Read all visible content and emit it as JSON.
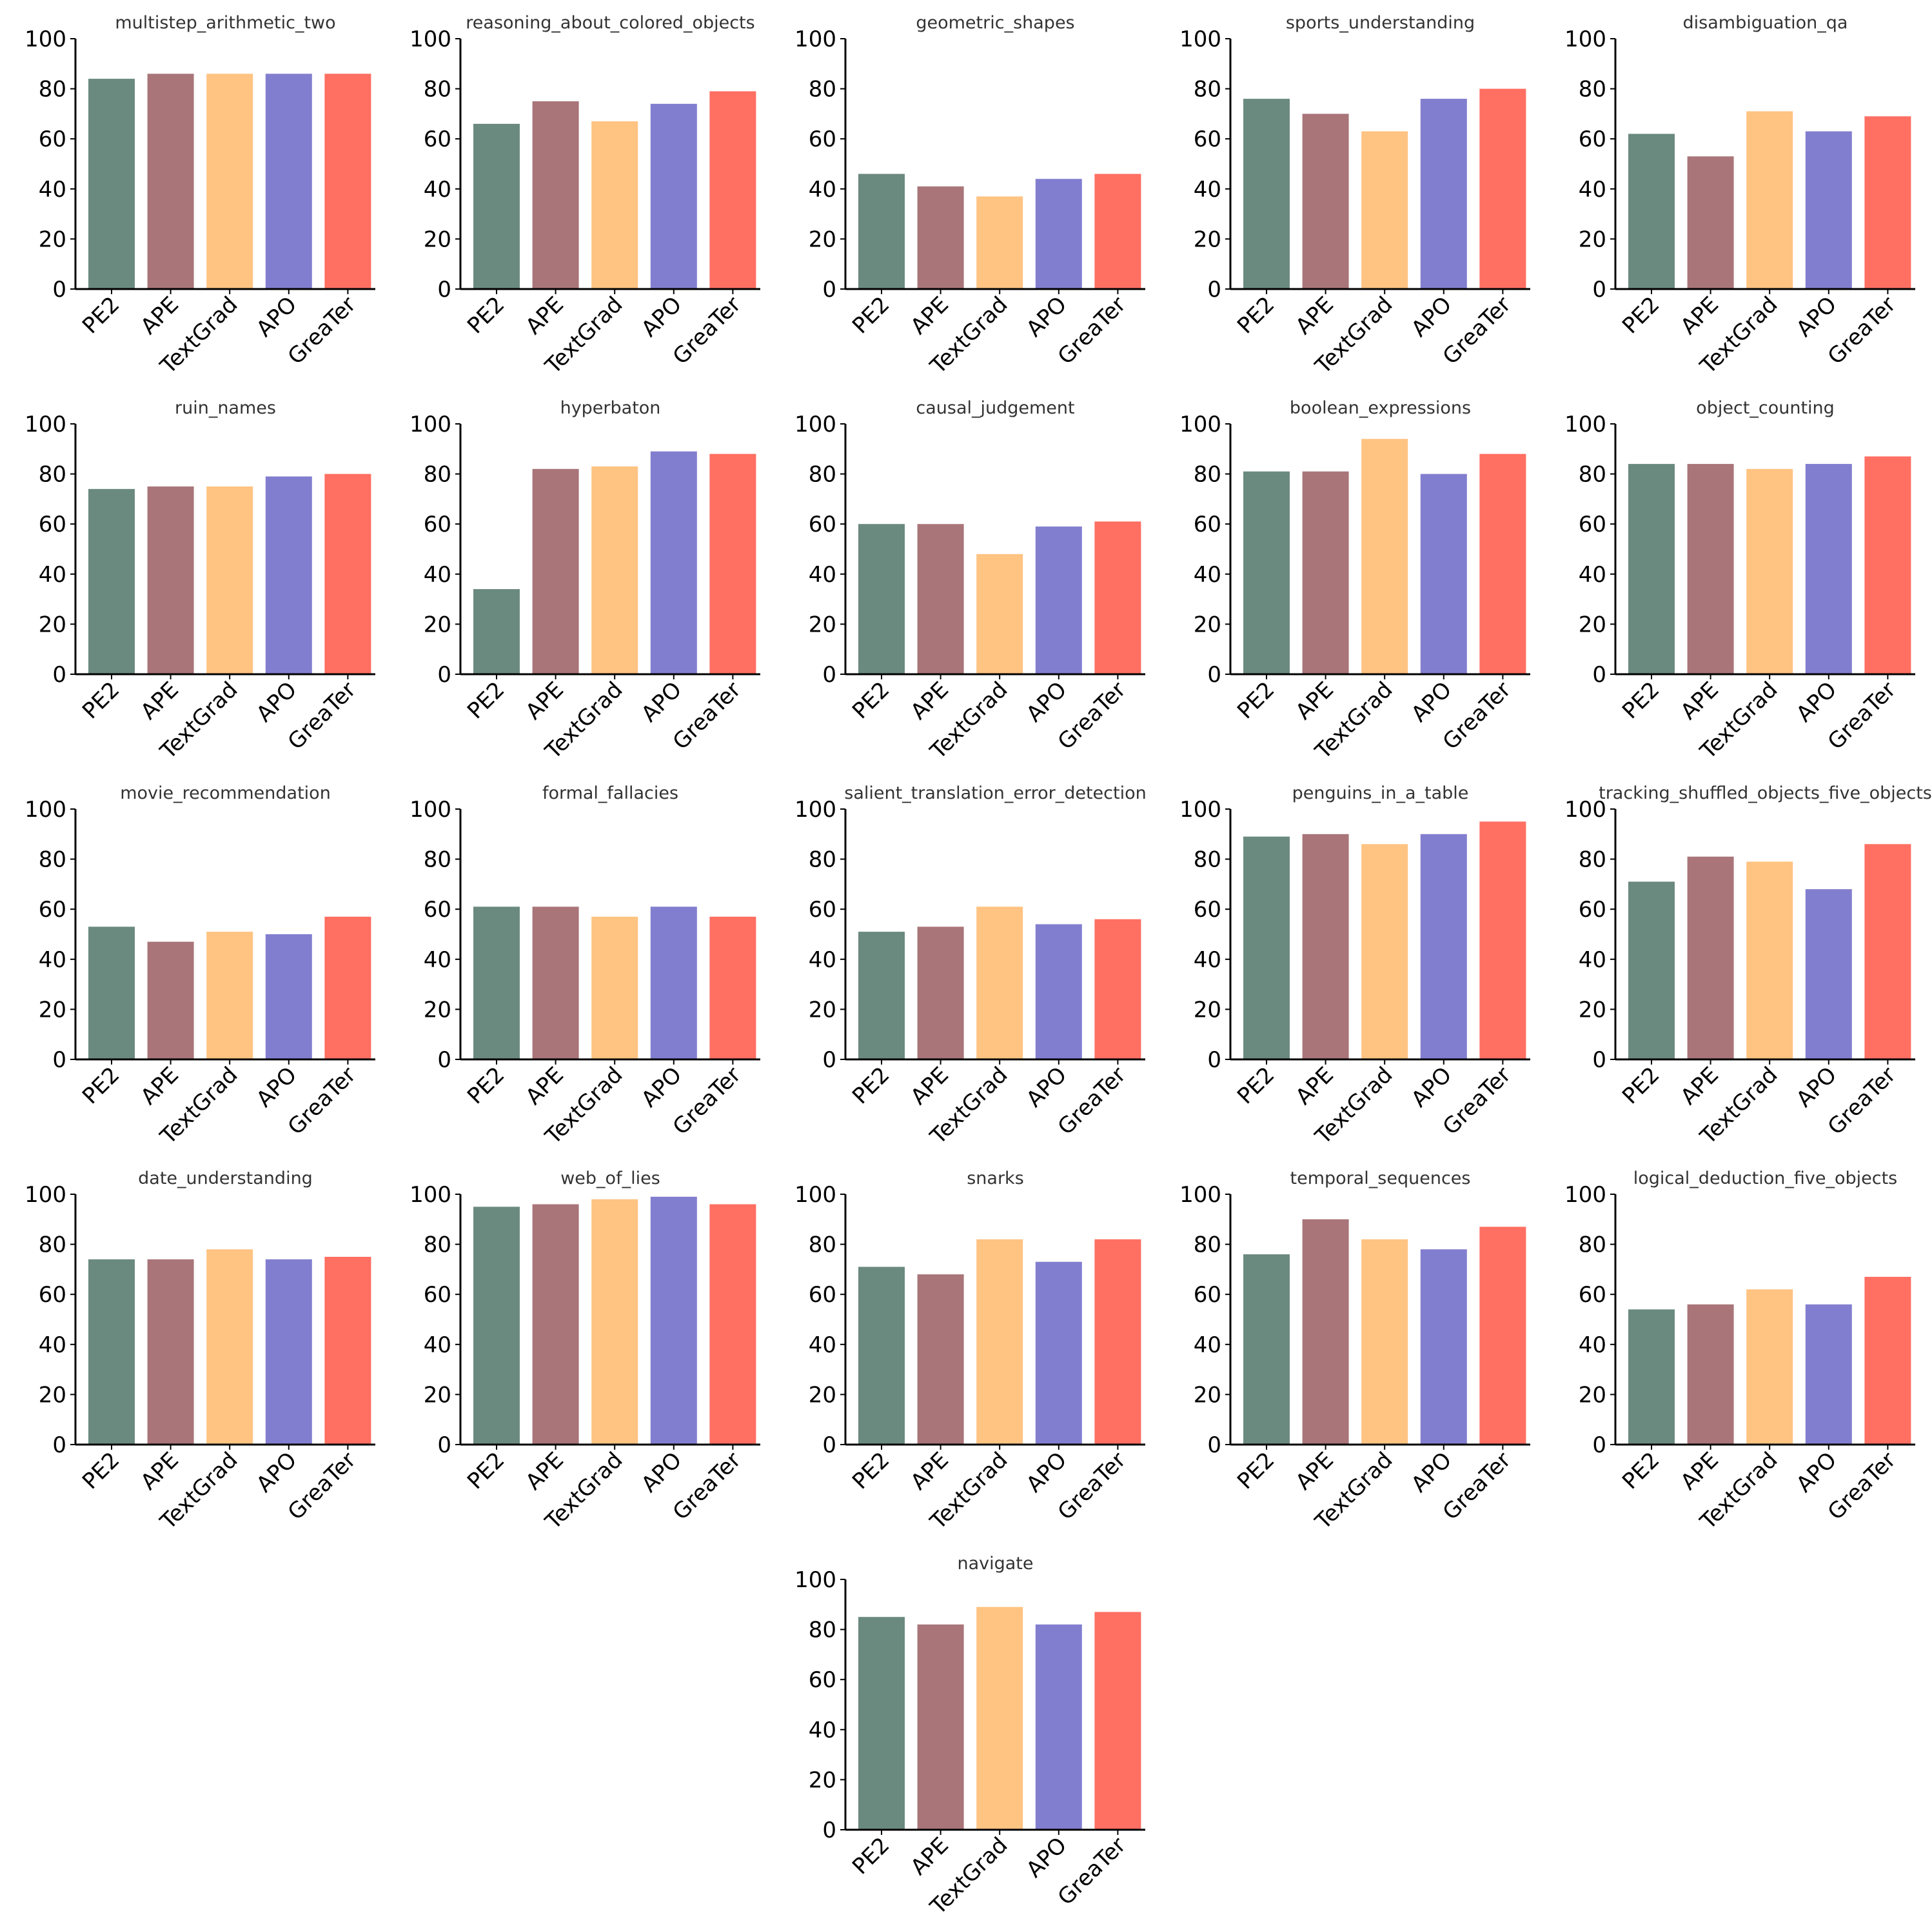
{
  "chart_data": {
    "type": "bar",
    "categories": [
      "PE2",
      "APE",
      "TextGrad",
      "APO",
      "GreaTer"
    ],
    "colors": [
      "#6b8a7f",
      "#a97579",
      "#ffc382",
      "#827ecf",
      "#ff6f62"
    ],
    "ylim": [
      0,
      100
    ],
    "yticks": [
      0,
      20,
      40,
      60,
      80,
      100
    ],
    "grid": false,
    "legend": "none",
    "panels": [
      {
        "title": "multistep_arithmetic_two",
        "values": [
          84,
          86,
          86,
          86,
          86
        ]
      },
      {
        "title": "reasoning_about_colored_objects",
        "values": [
          66,
          75,
          67,
          74,
          79
        ]
      },
      {
        "title": "geometric_shapes",
        "values": [
          46,
          41,
          37,
          44,
          46
        ]
      },
      {
        "title": "sports_understanding",
        "values": [
          76,
          70,
          63,
          76,
          80
        ]
      },
      {
        "title": "disambiguation_qa",
        "values": [
          62,
          53,
          71,
          63,
          69
        ]
      },
      {
        "title": "ruin_names",
        "values": [
          74,
          75,
          75,
          79,
          80
        ]
      },
      {
        "title": "hyperbaton",
        "values": [
          34,
          82,
          83,
          89,
          88
        ]
      },
      {
        "title": "causal_judgement",
        "values": [
          60,
          60,
          48,
          59,
          61
        ]
      },
      {
        "title": "boolean_expressions",
        "values": [
          81,
          81,
          94,
          80,
          88
        ]
      },
      {
        "title": "object_counting",
        "values": [
          84,
          84,
          82,
          84,
          87
        ]
      },
      {
        "title": "movie_recommendation",
        "values": [
          53,
          47,
          51,
          50,
          57
        ]
      },
      {
        "title": "formal_fallacies",
        "values": [
          61,
          61,
          57,
          61,
          57
        ]
      },
      {
        "title": "salient_translation_error_detection",
        "values": [
          51,
          53,
          61,
          54,
          56
        ]
      },
      {
        "title": "penguins_in_a_table",
        "values": [
          89,
          90,
          86,
          90,
          95
        ]
      },
      {
        "title": "tracking_shuffled_objects_five_objects",
        "values": [
          71,
          81,
          79,
          68,
          86
        ]
      },
      {
        "title": "date_understanding",
        "values": [
          74,
          74,
          78,
          74,
          75
        ]
      },
      {
        "title": "web_of_lies",
        "values": [
          95,
          96,
          98,
          99,
          96
        ]
      },
      {
        "title": "snarks",
        "values": [
          71,
          68,
          82,
          73,
          82
        ]
      },
      {
        "title": "temporal_sequences",
        "values": [
          76,
          90,
          82,
          78,
          87
        ]
      },
      {
        "title": "logical_deduction_five_objects",
        "values": [
          54,
          56,
          62,
          56,
          67
        ]
      },
      {
        "title": "navigate",
        "values": [
          85,
          82,
          89,
          82,
          87
        ]
      }
    ]
  }
}
